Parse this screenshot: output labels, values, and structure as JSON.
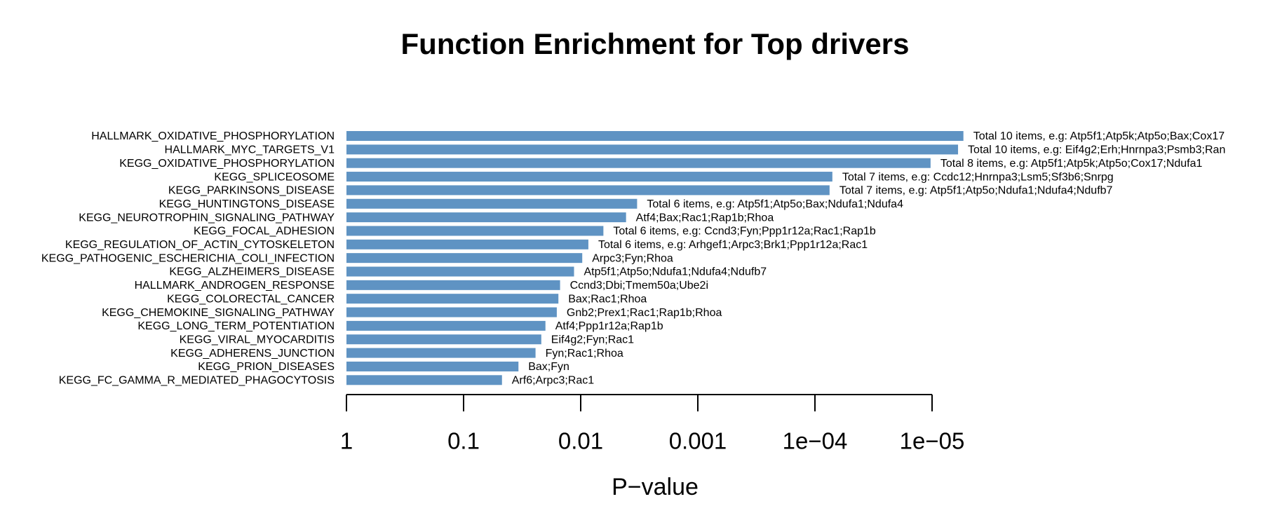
{
  "chart_data": {
    "type": "bar",
    "orientation": "horizontal",
    "title": "Function Enrichment for Top drivers",
    "x_label": "P−value",
    "log_scale": true,
    "color": "#5f93c3",
    "categories": [
      "HALLMARK_OXIDATIVE_PHOSPHORYLATION",
      "HALLMARK_MYC_TARGETS_V1",
      "KEGG_OXIDATIVE_PHOSPHORYLATION",
      "KEGG_SPLICEOSOME",
      "KEGG_PARKINSONS_DISEASE",
      "KEGG_HUNTINGTONS_DISEASE",
      "KEGG_NEUROTROPHIN_SIGNALING_PATHWAY",
      "KEGG_FOCAL_ADHESION",
      "KEGG_REGULATION_OF_ACTIN_CYTOSKELETON",
      "KEGG_PATHOGENIC_ESCHERICHIA_COLI_INFECTION",
      "KEGG_ALZHEIMERS_DISEASE",
      "HALLMARK_ANDROGEN_RESPONSE",
      "KEGG_COLORECTAL_CANCER",
      "KEGG_CHEMOKINE_SIGNALING_PATHWAY",
      "KEGG_LONG_TERM_POTENTIATION",
      "KEGG_VIRAL_MYOCARDITIS",
      "KEGG_ADHERENS_JUNCTION",
      "KEGG_PRION_DISEASES",
      "KEGG_FC_GAMMA_R_MEDIATED_PHAGOCYTOSIS"
    ],
    "values": [
      5.4e-06,
      6e-06,
      1.03e-05,
      7.1e-05,
      7.5e-05,
      0.0033,
      0.0041,
      0.0064,
      0.0086,
      0.0097,
      0.0114,
      0.015,
      0.0155,
      0.016,
      0.02,
      0.0217,
      0.0243,
      0.034,
      0.047
    ],
    "annotations": [
      "Total 10 items, e.g: Atp5f1;Atp5k;Atp5o;Bax;Cox17",
      "Total 10 items, e.g: Eif4g2;Erh;Hnrnpa3;Psmb3;Ran",
      "Total 8 items, e.g: Atp5f1;Atp5k;Atp5o;Cox17;Ndufa1",
      "Total 7 items, e.g: Ccdc12;Hnrnpa3;Lsm5;Sf3b6;Snrpg",
      "Total 7 items, e.g: Atp5f1;Atp5o;Ndufa1;Ndufa4;Ndufb7",
      "Total 6 items, e.g: Atp5f1;Atp5o;Bax;Ndufa1;Ndufa4",
      "Atf4;Bax;Rac1;Rap1b;Rhoa",
      "Total 6 items, e.g: Ccnd3;Fyn;Ppp1r12a;Rac1;Rap1b",
      "Total 6 items, e.g: Arhgef1;Arpc3;Brk1;Ppp1r12a;Rac1",
      "Arpc3;Fyn;Rhoa",
      "Atp5f1;Atp5o;Ndufa1;Ndufa4;Ndufb7",
      "Ccnd3;Dbi;Tmem50a;Ube2i",
      "Bax;Rac1;Rhoa",
      "Gnb2;Prex1;Rac1;Rap1b;Rhoa",
      "Atf4;Ppp1r12a;Rap1b",
      "Eif4g2;Fyn;Rac1",
      "Fyn;Rac1;Rhoa",
      "Bax;Fyn",
      "Arf6;Arpc3;Rac1"
    ],
    "xlim": [
      1,
      1e-07
    ],
    "xticks": [
      1,
      0.1,
      0.01,
      0.001,
      {
        "value": 0.0001,
        "label": "1e−04"
      },
      {
        "value": 1e-05,
        "label": "1e−05"
      }
    ]
  }
}
